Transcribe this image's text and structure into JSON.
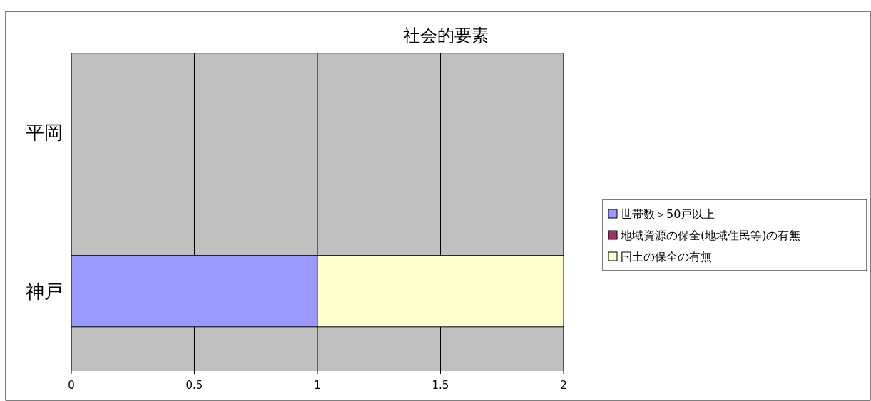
{
  "chart_data": {
    "type": "bar",
    "title": "社会的要素",
    "orientation": "horizontal",
    "stacked": true,
    "categories": [
      "平岡",
      "神戸"
    ],
    "series": [
      {
        "name": "世帯数＞50戸以上",
        "color": "#9999ff",
        "values": [
          0,
          1
        ]
      },
      {
        "name": "地域資源の保全(地域住民等)の有無",
        "color": "#993366",
        "values": [
          0,
          0
        ]
      },
      {
        "name": "国土の保全の有無",
        "color": "#ffffcc",
        "values": [
          0,
          1
        ]
      }
    ],
    "xlim": [
      0,
      2
    ],
    "xticks": [
      0,
      0.5,
      1,
      1.5,
      2
    ],
    "grid": "x",
    "legend": "right"
  }
}
